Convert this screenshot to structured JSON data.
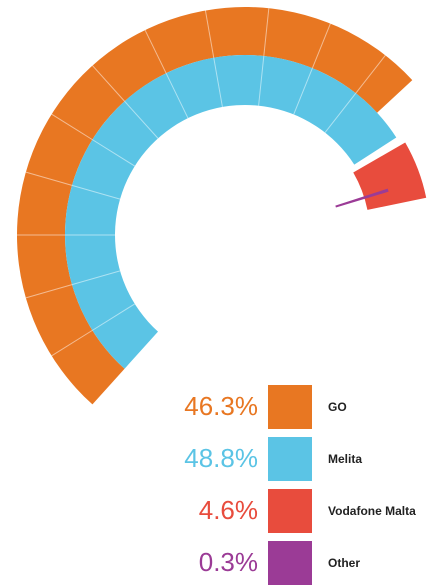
{
  "chart_data": {
    "type": "radial-bar",
    "series": [
      {
        "name": "GO",
        "color": "#e87722",
        "values": [
          46.3
        ],
        "value_labels": [
          "46.3%"
        ]
      },
      {
        "name": "Melita",
        "color": "#5bc4e5",
        "values": [
          48.8
        ],
        "value_labels": [
          "48.8%"
        ]
      },
      {
        "name": "Vodafone Malta",
        "color": "#e84c3d",
        "values": [
          4.6
        ],
        "value_labels": [
          "4.6%"
        ]
      },
      {
        "name": "Other",
        "color": "#9b3b96",
        "values": [
          0.3
        ],
        "value_labels": [
          "0.3%"
        ]
      }
    ]
  }
}
